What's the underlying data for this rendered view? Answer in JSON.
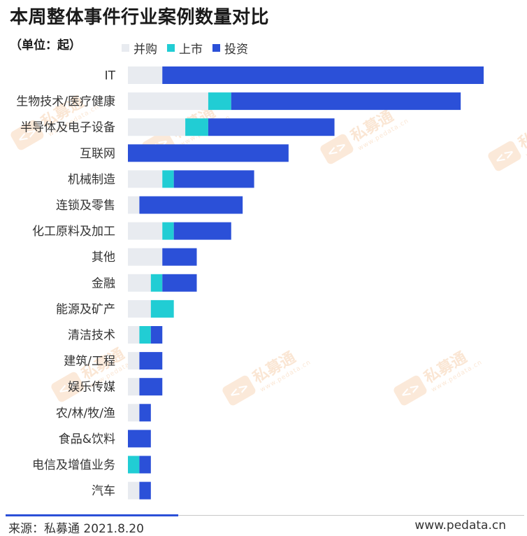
{
  "title": "本周整体事件行业案例数量对比",
  "unit": "（单位：起）",
  "legend": [
    {
      "name": "并购",
      "color": "#e8ebf0"
    },
    {
      "name": "上市",
      "color": "#21cdd4"
    },
    {
      "name": "投资",
      "color": "#2b50d8"
    }
  ],
  "chart_data": {
    "type": "bar",
    "orientation": "horizontal",
    "stacked": true,
    "title": "本周整体事件行业案例数量对比",
    "unit": "单位：起",
    "categories": [
      "IT",
      "生物技术/医疗健康",
      "半导体及电子设备",
      "互联网",
      "机械制造",
      "连锁及零售",
      "化工原料及加工",
      "其他",
      "金融",
      "能源及矿产",
      "清洁技术",
      "建筑/工程",
      "娱乐传媒",
      "农/林/牧/渔",
      "食品&饮料",
      "电信及增值业务",
      "汽车"
    ],
    "series": [
      {
        "name": "并购",
        "color": "#e8ebf0",
        "values": [
          3,
          7,
          5,
          0,
          3,
          1,
          3,
          3,
          2,
          2,
          1,
          1,
          1,
          1,
          0,
          0,
          1
        ]
      },
      {
        "name": "上市",
        "color": "#21cdd4",
        "values": [
          0,
          2,
          2,
          0,
          1,
          0,
          1,
          0,
          1,
          2,
          1,
          0,
          0,
          0,
          0,
          1,
          0
        ]
      },
      {
        "name": "投资",
        "color": "#2b50d8",
        "values": [
          28,
          20,
          11,
          14,
          7,
          9,
          5,
          3,
          3,
          0,
          1,
          2,
          2,
          1,
          2,
          1,
          1
        ]
      }
    ],
    "xlim": [
      0,
      31
    ],
    "grid": false,
    "legend_position": "top"
  },
  "watermark": {
    "text": "私募通",
    "sub": "www.pedata.cn",
    "badge": "<>"
  },
  "footer": {
    "source": "来源：私募通 2021.8.20",
    "site": "www.pedata.cn"
  }
}
